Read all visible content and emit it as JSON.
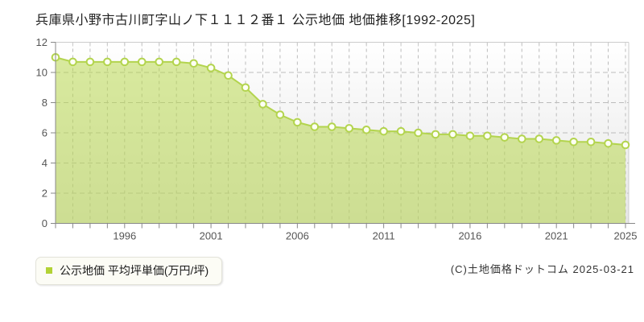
{
  "page": {
    "title": "兵庫県小野市古川町字山ノ下１１１２番１ 公示地価 地価推移[1992-2025]",
    "copyright": "(C)土地価格ドットコム 2025-03-21"
  },
  "legend": {
    "marker_color": "#b2d235",
    "label": "公示地価 平均坪単価(万円/坪)"
  },
  "chart_data": {
    "type": "area",
    "title": "公示地価 地価推移",
    "series_name": "公示地価 平均坪単価(万円/坪)",
    "x": [
      1992,
      1993,
      1994,
      1995,
      1996,
      1997,
      1998,
      1999,
      2000,
      2001,
      2002,
      2003,
      2004,
      2005,
      2006,
      2007,
      2008,
      2009,
      2010,
      2011,
      2012,
      2013,
      2014,
      2015,
      2016,
      2017,
      2018,
      2019,
      2020,
      2021,
      2022,
      2023,
      2024,
      2025
    ],
    "values": [
      11.0,
      10.7,
      10.7,
      10.7,
      10.7,
      10.7,
      10.7,
      10.7,
      10.6,
      10.3,
      9.8,
      9.0,
      7.9,
      7.2,
      6.7,
      6.4,
      6.4,
      6.3,
      6.2,
      6.1,
      6.1,
      6.0,
      5.9,
      5.9,
      5.8,
      5.8,
      5.7,
      5.6,
      5.6,
      5.5,
      5.4,
      5.4,
      5.3,
      5.2
    ],
    "xlabel": "",
    "ylabel": "万円/坪",
    "ylim": [
      0,
      12
    ],
    "yticks": [
      0,
      2,
      4,
      6,
      8,
      10,
      12
    ],
    "xtick_labels": [
      "1996",
      "2001",
      "2006",
      "2011",
      "2016",
      "2021",
      "2025"
    ],
    "xtick_years": [
      1996,
      2001,
      2006,
      2011,
      2016,
      2021,
      2025
    ],
    "grid": true,
    "legend_position": "bottom-left",
    "colors": {
      "line": "#b3d44e",
      "fill_rgba": "rgba(182,214,71,0.52)",
      "marker_fill": "#fdfff4",
      "grid": "#bcbcbc",
      "axis": "#888888",
      "border": "#cccccc",
      "tick_label": "#555555",
      "bg_top": "#ffffff",
      "bg_bottom": "#e6e6e6"
    }
  }
}
